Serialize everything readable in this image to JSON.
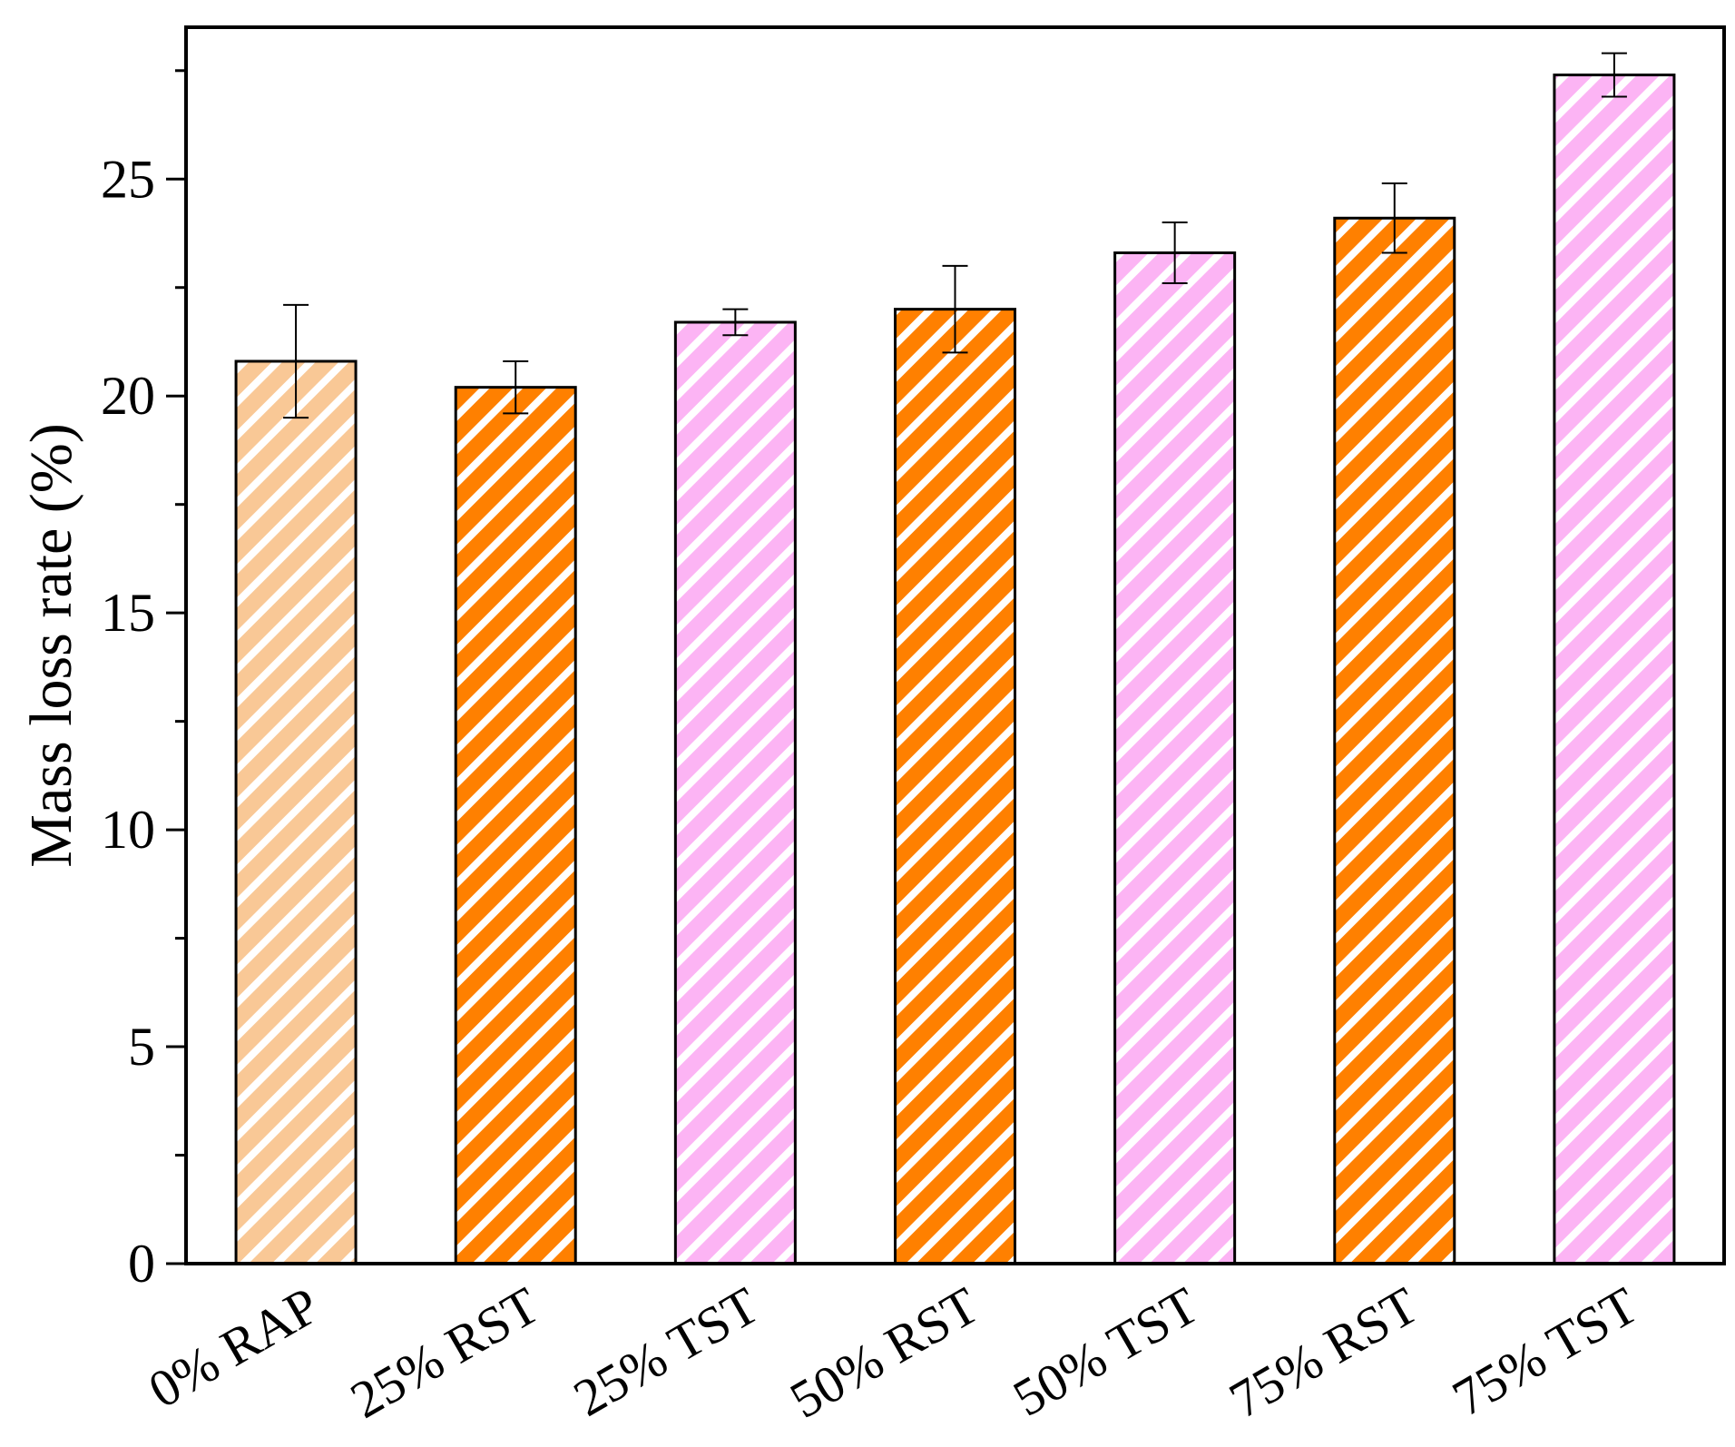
{
  "chart_data": {
    "type": "bar",
    "ylabel": "Mass loss rate (%)",
    "xlabel": "",
    "ylim": [
      0,
      28.5
    ],
    "yticks": [
      0,
      5,
      10,
      15,
      20,
      25
    ],
    "grid": false,
    "legend": "none",
    "categories": [
      "0% RAP",
      "25% RST",
      "25% TST",
      "50% RST",
      "50% TST",
      "75% RST",
      "75% TST"
    ],
    "values": [
      20.8,
      20.2,
      21.7,
      22.0,
      23.3,
      24.1,
      27.4
    ],
    "errors": [
      1.3,
      0.6,
      0.3,
      1.0,
      0.7,
      0.8,
      0.5
    ],
    "fills": [
      "light-orange",
      "orange",
      "pink",
      "orange",
      "pink",
      "orange",
      "pink"
    ],
    "bar_pattern": "diagonal-stripes"
  },
  "colors": {
    "light-orange": "#f9c896",
    "orange": "#ff8000",
    "pink": "#fcb4f4",
    "axis": "#000000"
  }
}
